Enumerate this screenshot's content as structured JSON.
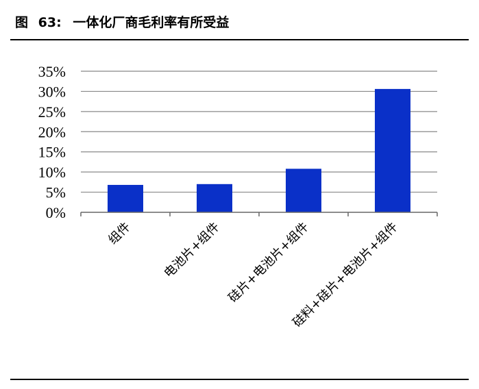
{
  "figure": {
    "label": "图",
    "number": "63:",
    "title": "一体化厂商毛利率有所受益"
  },
  "chart_data": {
    "type": "bar",
    "categories": [
      "组件",
      "电池片+组件",
      "硅片+电池片+组件",
      "硅料+硅片+电池片+组件"
    ],
    "series": [
      {
        "values": [
          6.8,
          7.0,
          10.8,
          30.6
        ]
      }
    ],
    "y_ticks": [
      "0%",
      "5%",
      "10%",
      "15%",
      "20%",
      "25%",
      "30%",
      "35%"
    ],
    "ylim": [
      0,
      35
    ],
    "y_unit": "%",
    "grid": true,
    "legend": "none",
    "bar_color": "#0a30c8",
    "grid_color": "#888888"
  }
}
